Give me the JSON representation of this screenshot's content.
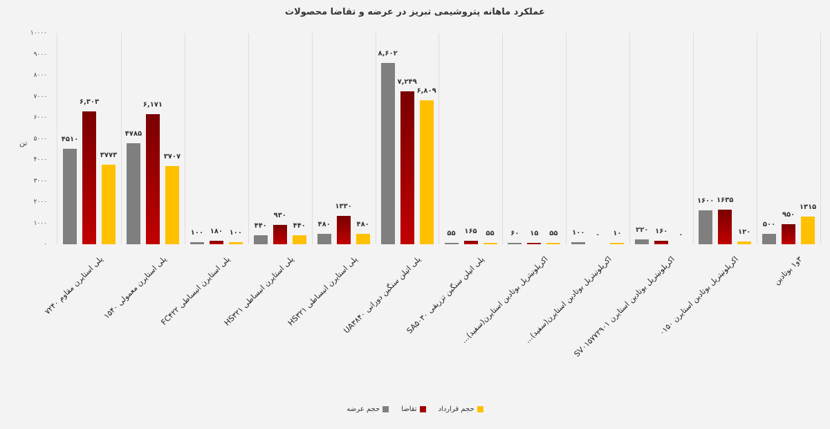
{
  "title": "عملکرد ماهانه پتروشیمی تبریز در عرضه و تقاضا محصولات",
  "chart_data": {
    "type": "bar",
    "title": "عملکرد ماهانه پتروشیمی تبریز در عرضه و تقاضا محصولات",
    "xlabel": "",
    "ylabel": "تن",
    "ylim": [
      0,
      10000
    ],
    "yticks": [
      "۰",
      "۱۰۰۰",
      "۲۰۰۰",
      "۳۰۰۰",
      "۴۰۰۰",
      "۵۰۰۰",
      "۶۰۰۰",
      "۷۰۰۰",
      "۸۰۰۰",
      "۹۰۰۰",
      "۱۰۰۰۰"
    ],
    "grid": false,
    "legend_position": "bottom",
    "categories": [
      "پلی استایرن مقاوم ۷۲۴۰",
      "پلی استایرن معمولی ۱۵۴۰",
      "پلی استایرن انبساطی FC۴۲۲",
      "پلی استایرن انبساطی HS۳۲۱",
      "پلی استایرن انبساطی HS۳۲۱",
      "پلی اتیلن سنگین دورانی UA۳۸۴۰",
      "پلی اتیلن سنگین تزریقی SA۵۰۳۰",
      "اکریلونیتریل بوتادین استایرن(سفید)...",
      "اکریلونیتریل بوتادین استایرن(سفید)...",
      "اکریلونیتریل بوتادین استایرن SV۰۱۵۷۷۲۹۰۱",
      "اکریلونیتریل بوتادین استایرن ۰۱۵۰",
      "۳و۱ بوتادین"
    ],
    "series": [
      {
        "name": "حجم عرضه",
        "color": "#7f7f7f",
        "values": [
          4510,
          4785,
          100,
          440,
          480,
          8602,
          55,
          60,
          100,
          220,
          1600,
          500
        ],
        "labels": [
          "۴۵۱۰",
          "۴۷۸۵",
          "۱۰۰",
          "۴۴۰",
          "۴۸۰",
          "۸,۶۰۲",
          "۵۵",
          "۶۰",
          "۱۰۰",
          "۲۲۰",
          "۱۶۰۰",
          "۵۰۰"
        ]
      },
      {
        "name": "تقاضا",
        "color": "#a00000",
        "values": [
          6303,
          6171,
          180,
          930,
          1330,
          7249,
          165,
          15,
          0,
          160,
          1635,
          950
        ],
        "labels": [
          "۶,۳۰۳",
          "۶,۱۷۱",
          "۱۸۰",
          "۹۳۰",
          "۱۳۳۰",
          "۷,۲۴۹",
          "۱۶۵",
          "۱۵",
          "۰",
          "۱۶۰",
          "۱۶۳۵",
          "۹۵۰"
        ]
      },
      {
        "name": "حجم قرارداد",
        "color": "#ffc000",
        "values": [
          3773,
          3707,
          100,
          440,
          480,
          6809,
          55,
          55,
          10,
          0,
          120,
          1315
        ],
        "labels": [
          "۳۷۷۳",
          "۳۷۰۷",
          "۱۰۰",
          "۴۴۰",
          "۴۸۰",
          "۶,۸۰۹",
          "۵۵",
          "۵۵",
          "۱۰",
          "۰",
          "۱۲۰",
          "۱۳۱۵"
        ]
      }
    ]
  },
  "legend": [
    {
      "label": "حجم قرارداد",
      "color": "#ffc000"
    },
    {
      "label": "تقاضا",
      "color": "#a00000"
    },
    {
      "label": "حجم عرضه",
      "color": "#7f7f7f"
    }
  ]
}
